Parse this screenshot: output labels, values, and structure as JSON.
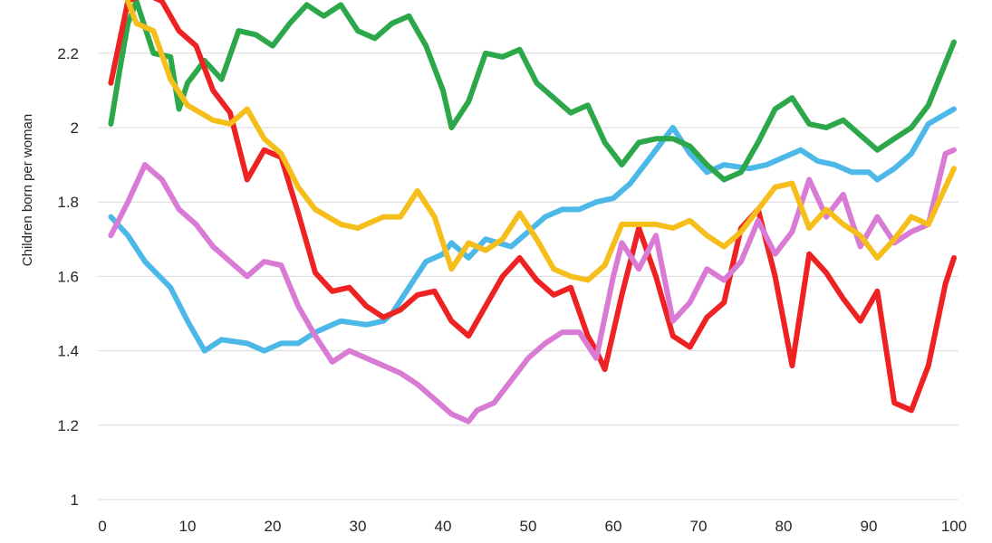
{
  "chart_data": {
    "type": "line",
    "title": "",
    "xlabel": "",
    "ylabel": "Children born per woman",
    "xlim": [
      0,
      100
    ],
    "ylim": [
      1,
      2.35
    ],
    "x_ticks": [
      0,
      10,
      20,
      30,
      40,
      50,
      60,
      70,
      80,
      90,
      100
    ],
    "y_ticks": [
      1,
      1.2,
      1.4,
      1.6,
      1.8,
      2,
      2.2
    ],
    "y_tick_labels": [
      "1",
      "1.2",
      "1.4",
      "1.6",
      "1.8",
      "2",
      "2.2"
    ],
    "grid": true,
    "legend": "none",
    "series": [
      {
        "color": "#4cb8e8",
        "x": [
          1,
          3,
          5,
          8,
          10,
          12,
          14,
          17,
          19,
          21,
          23,
          25,
          28,
          31,
          33,
          34,
          36,
          38,
          40,
          41,
          43,
          45,
          48,
          50,
          52,
          54,
          56,
          58,
          60,
          62,
          64,
          67,
          69,
          71,
          73,
          76,
          78,
          80,
          82,
          84,
          86,
          88,
          90,
          91,
          93,
          95,
          97,
          100
        ],
        "y": [
          1.76,
          1.71,
          1.64,
          1.57,
          1.48,
          1.4,
          1.43,
          1.42,
          1.4,
          1.42,
          1.42,
          1.45,
          1.48,
          1.47,
          1.48,
          1.5,
          1.57,
          1.64,
          1.66,
          1.69,
          1.65,
          1.7,
          1.68,
          1.72,
          1.76,
          1.78,
          1.78,
          1.8,
          1.81,
          1.85,
          1.91,
          2.0,
          1.93,
          1.88,
          1.9,
          1.89,
          1.9,
          1.92,
          1.94,
          1.91,
          1.9,
          1.88,
          1.88,
          1.86,
          1.89,
          1.93,
          2.01,
          2.05
        ]
      },
      {
        "color": "#2ca84a",
        "x": [
          1,
          2,
          3,
          4,
          5,
          6,
          8,
          9,
          10,
          12,
          14,
          16,
          18,
          20,
          22,
          24,
          26,
          28,
          30,
          32,
          34,
          36,
          38,
          40,
          41,
          43,
          45,
          47,
          49,
          51,
          53,
          55,
          57,
          59,
          61,
          63,
          65,
          67,
          69,
          71,
          73,
          75,
          77,
          79,
          81,
          83,
          85,
          87,
          89,
          91,
          93,
          95,
          97,
          100
        ],
        "y": [
          2.01,
          2.15,
          2.28,
          2.34,
          2.27,
          2.2,
          2.19,
          2.05,
          2.12,
          2.18,
          2.13,
          2.26,
          2.25,
          2.22,
          2.28,
          2.33,
          2.3,
          2.33,
          2.26,
          2.24,
          2.28,
          2.3,
          2.22,
          2.1,
          2.0,
          2.07,
          2.2,
          2.19,
          2.21,
          2.12,
          2.08,
          2.04,
          2.06,
          1.96,
          1.9,
          1.96,
          1.97,
          1.97,
          1.95,
          1.9,
          1.86,
          1.88,
          1.96,
          2.05,
          2.08,
          2.01,
          2.0,
          2.02,
          1.98,
          1.94,
          1.97,
          2.0,
          2.06,
          2.23
        ]
      },
      {
        "color": "#ee2222",
        "x": [
          1,
          3,
          5,
          7,
          9,
          11,
          13,
          15,
          17,
          19,
          21,
          23,
          25,
          27,
          29,
          31,
          33,
          35,
          37,
          39,
          41,
          43,
          45,
          47,
          49,
          51,
          53,
          55,
          57,
          58,
          59,
          61,
          63,
          65,
          67,
          69,
          71,
          73,
          75,
          77,
          79,
          81,
          83,
          85,
          87,
          89,
          91,
          93,
          95,
          97,
          99,
          100
        ],
        "y": [
          2.12,
          2.34,
          2.36,
          2.34,
          2.26,
          2.22,
          2.1,
          2.04,
          1.86,
          1.94,
          1.92,
          1.77,
          1.61,
          1.56,
          1.57,
          1.52,
          1.49,
          1.51,
          1.55,
          1.56,
          1.48,
          1.44,
          1.52,
          1.6,
          1.65,
          1.59,
          1.55,
          1.57,
          1.44,
          1.4,
          1.35,
          1.55,
          1.73,
          1.6,
          1.44,
          1.41,
          1.49,
          1.53,
          1.73,
          1.78,
          1.6,
          1.36,
          1.66,
          1.61,
          1.54,
          1.48,
          1.56,
          1.26,
          1.24,
          1.36,
          1.58,
          1.65
        ]
      },
      {
        "color": "#d97bd4",
        "x": [
          1,
          3,
          5,
          7,
          9,
          11,
          13,
          15,
          17,
          19,
          21,
          23,
          25,
          27,
          29,
          31,
          33,
          35,
          37,
          39,
          41,
          43,
          44,
          46,
          48,
          50,
          52,
          54,
          56,
          58,
          60,
          61,
          63,
          65,
          67,
          69,
          71,
          73,
          75,
          77,
          79,
          81,
          83,
          85,
          87,
          89,
          91,
          93,
          95,
          97,
          99,
          100
        ],
        "y": [
          1.71,
          1.8,
          1.9,
          1.86,
          1.78,
          1.74,
          1.68,
          1.64,
          1.6,
          1.64,
          1.63,
          1.52,
          1.44,
          1.37,
          1.4,
          1.38,
          1.36,
          1.34,
          1.31,
          1.27,
          1.23,
          1.21,
          1.24,
          1.26,
          1.32,
          1.38,
          1.42,
          1.45,
          1.45,
          1.38,
          1.6,
          1.69,
          1.62,
          1.71,
          1.48,
          1.53,
          1.62,
          1.59,
          1.64,
          1.75,
          1.66,
          1.72,
          1.86,
          1.76,
          1.82,
          1.68,
          1.76,
          1.69,
          1.72,
          1.74,
          1.93,
          1.94
        ]
      },
      {
        "color": "#f5be1a",
        "x": [
          3,
          4,
          6,
          8,
          10,
          13,
          15,
          17,
          19,
          21,
          23,
          25,
          28,
          30,
          33,
          35,
          37,
          39,
          41,
          43,
          45,
          47,
          49,
          51,
          53,
          55,
          57,
          59,
          61,
          63,
          65,
          67,
          69,
          71,
          73,
          75,
          77,
          79,
          81,
          83,
          85,
          87,
          89,
          91,
          93,
          95,
          97,
          100
        ],
        "y": [
          2.34,
          2.28,
          2.26,
          2.13,
          2.06,
          2.02,
          2.01,
          2.05,
          1.97,
          1.93,
          1.84,
          1.78,
          1.74,
          1.73,
          1.76,
          1.76,
          1.83,
          1.76,
          1.62,
          1.69,
          1.67,
          1.7,
          1.77,
          1.7,
          1.62,
          1.6,
          1.59,
          1.63,
          1.74,
          1.74,
          1.74,
          1.73,
          1.75,
          1.71,
          1.68,
          1.72,
          1.78,
          1.84,
          1.85,
          1.73,
          1.78,
          1.74,
          1.71,
          1.65,
          1.7,
          1.76,
          1.74,
          1.89
        ]
      }
    ]
  }
}
